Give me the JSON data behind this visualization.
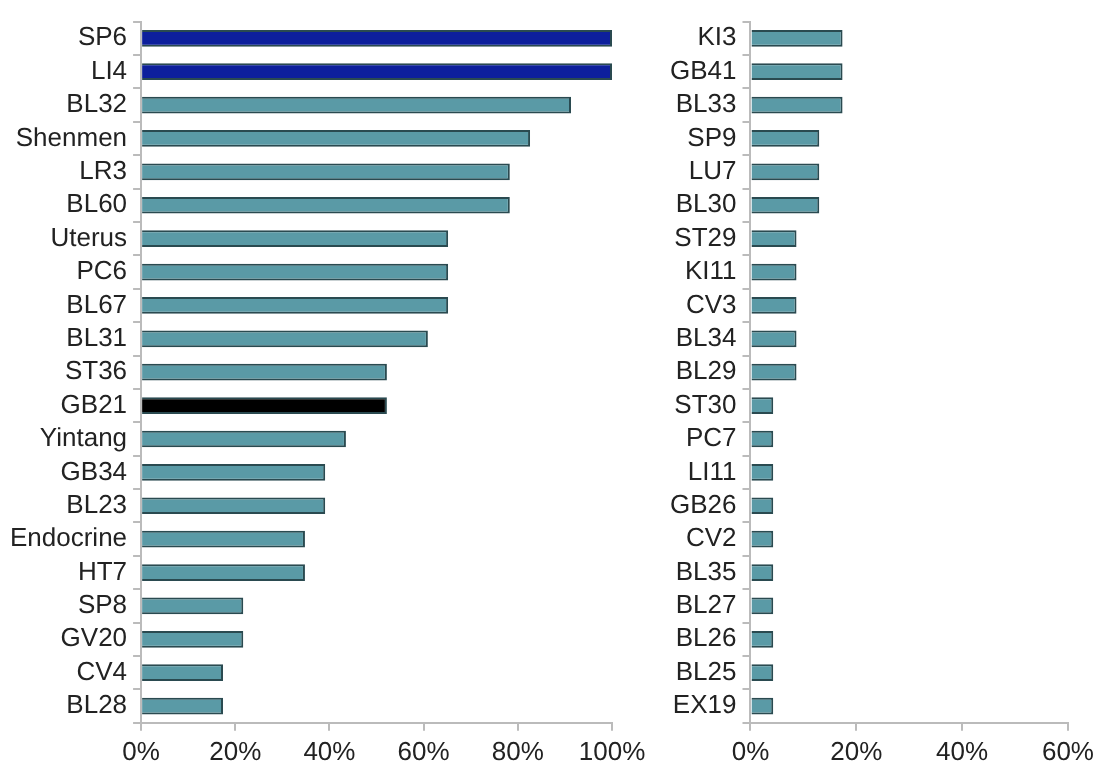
{
  "chart_data": [
    {
      "type": "bar",
      "orientation": "horizontal",
      "categories": [
        "SP6",
        "LI4",
        "BL32",
        "Shenmen",
        "LR3",
        "BL60",
        "Uterus",
        "PC6",
        "BL67",
        "BL31",
        "ST36",
        "GB21",
        "Yintang",
        "GB34",
        "BL23",
        "Endocrine",
        "HT7",
        "SP8",
        "GV20",
        "CV4",
        "BL28"
      ],
      "values": [
        100,
        100,
        91.3,
        82.6,
        78.3,
        78.3,
        65.2,
        65.2,
        65.2,
        60.9,
        52.2,
        52.2,
        43.5,
        39.1,
        39.1,
        34.8,
        34.8,
        21.7,
        21.7,
        17.4,
        17.4
      ],
      "colors": [
        "#0d1f9c",
        "#0d1f9c",
        "#5a9aa6",
        "#5a9aa6",
        "#5a9aa6",
        "#5a9aa6",
        "#5a9aa6",
        "#5a9aa6",
        "#5a9aa6",
        "#5a9aa6",
        "#5a9aa6",
        "#000000",
        "#5a9aa6",
        "#5a9aa6",
        "#5a9aa6",
        "#5a9aa6",
        "#5a9aa6",
        "#5a9aa6",
        "#5a9aa6",
        "#5a9aa6",
        "#5a9aa6"
      ],
      "xlim": [
        0,
        100
      ],
      "xticks": [
        {
          "value": 0,
          "label": "0%"
        },
        {
          "value": 20,
          "label": "20%"
        },
        {
          "value": 40,
          "label": "40%"
        },
        {
          "value": 60,
          "label": "60%"
        },
        {
          "value": 80,
          "label": "80%"
        },
        {
          "value": 100,
          "label": "100%"
        }
      ],
      "grid": false,
      "legend": false
    },
    {
      "type": "bar",
      "orientation": "horizontal",
      "categories": [
        "KI3",
        "GB41",
        "BL33",
        "SP9",
        "LU7",
        "BL30",
        "ST29",
        "KI11",
        "CV3",
        "BL34",
        "BL29",
        "ST30",
        "PC7",
        "LI11",
        "GB26",
        "CV2",
        "BL35",
        "BL27",
        "BL26",
        "BL25",
        "EX19"
      ],
      "values": [
        17.4,
        17.4,
        17.4,
        13,
        13,
        13,
        8.7,
        8.7,
        8.7,
        8.7,
        8.7,
        4.3,
        4.3,
        4.3,
        4.3,
        4.3,
        4.3,
        4.3,
        4.3,
        4.3,
        4.3
      ],
      "colors": [
        "#5a9aa6",
        "#5a9aa6",
        "#5a9aa6",
        "#5a9aa6",
        "#5a9aa6",
        "#5a9aa6",
        "#5a9aa6",
        "#5a9aa6",
        "#5a9aa6",
        "#5a9aa6",
        "#5a9aa6",
        "#5a9aa6",
        "#5a9aa6",
        "#5a9aa6",
        "#5a9aa6",
        "#5a9aa6",
        "#5a9aa6",
        "#5a9aa6",
        "#5a9aa6",
        "#5a9aa6",
        "#5a9aa6"
      ],
      "xlim": [
        0,
        60
      ],
      "xticks": [
        {
          "value": 0,
          "label": "0%"
        },
        {
          "value": 20,
          "label": "20%"
        },
        {
          "value": 40,
          "label": "40%"
        },
        {
          "value": 60,
          "label": "60%"
        }
      ],
      "grid": false,
      "legend": false
    }
  ]
}
